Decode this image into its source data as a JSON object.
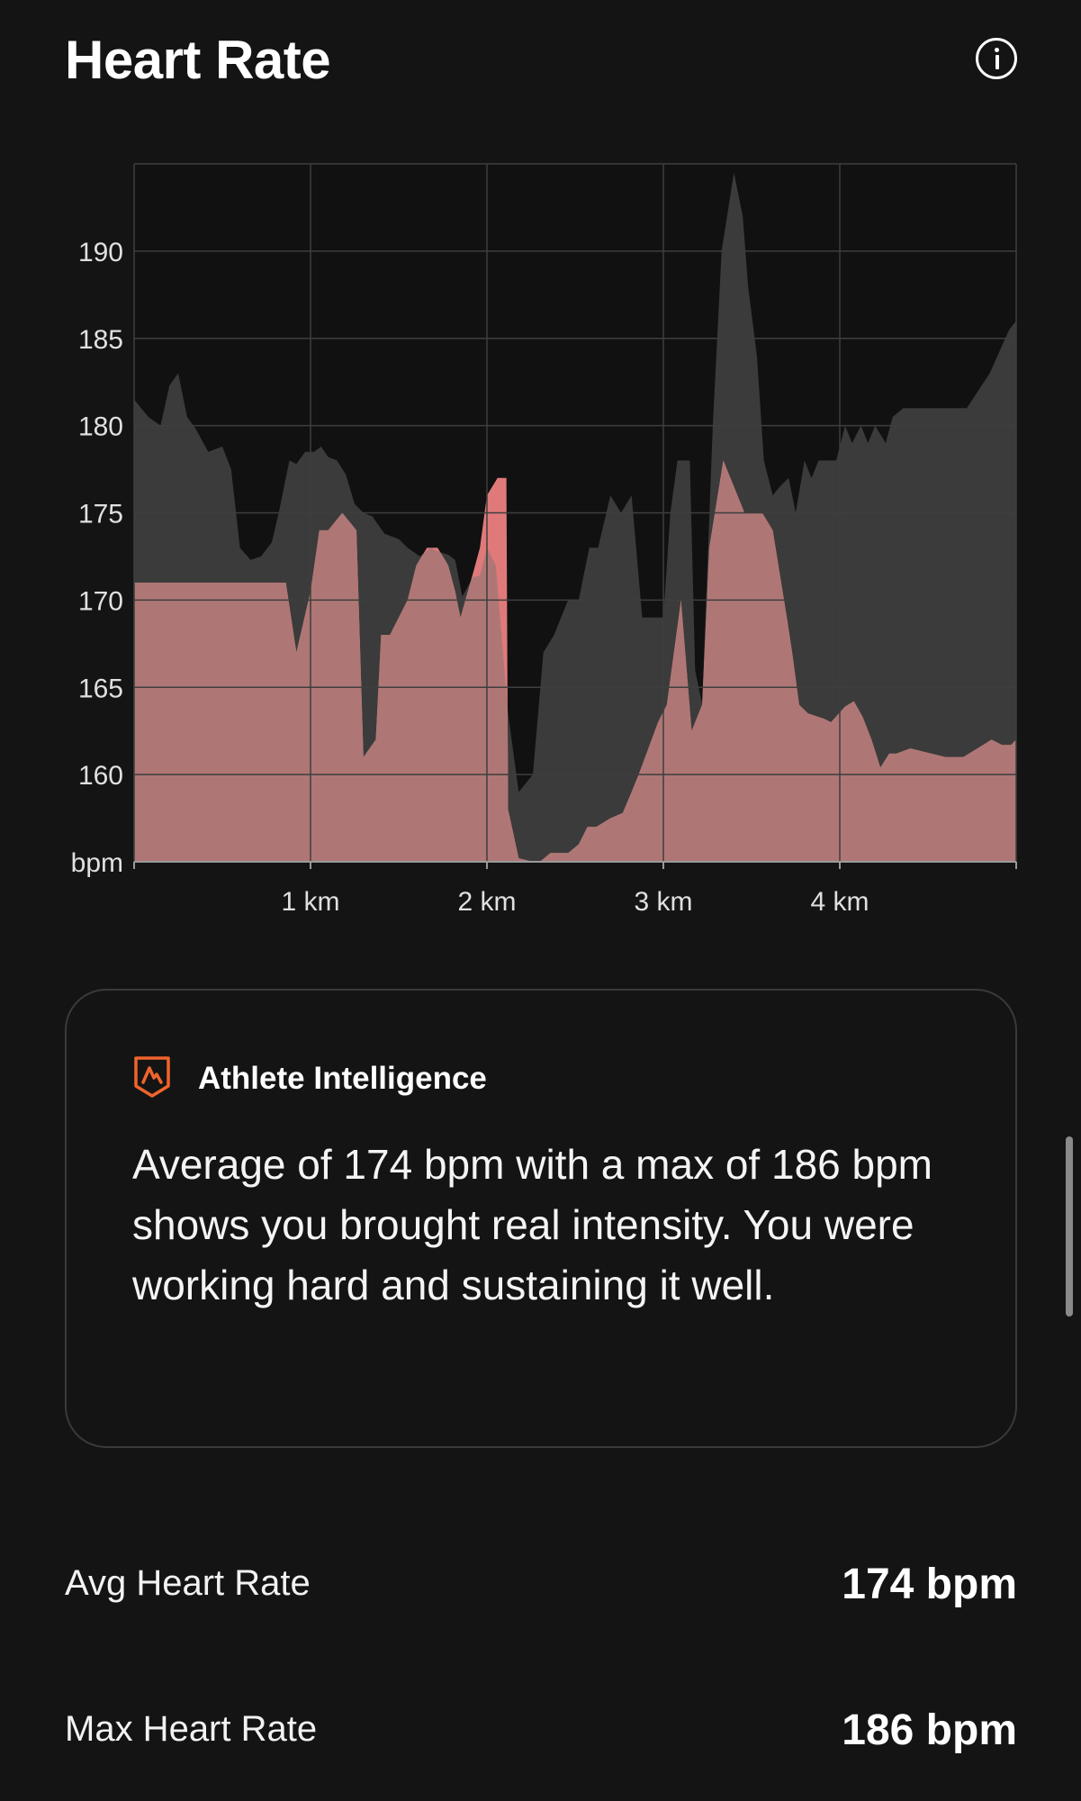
{
  "header": {
    "title": "Heart Rate",
    "info_icon": "info-icon"
  },
  "colors": {
    "background": "#141414",
    "heart_rate": "#e07a7a",
    "comparison": "#3b3b3b",
    "overlap": "#ae7775"
  },
  "chart_data": {
    "type": "area",
    "xlabel": "",
    "ylabel": "bpm",
    "x_ticks": [
      "1 km",
      "2 km",
      "3 km",
      "4 km"
    ],
    "x_tick_values": [
      1,
      2,
      3,
      4
    ],
    "y_ticks": [
      "bpm",
      "160",
      "165",
      "170",
      "175",
      "180",
      "185",
      "190"
    ],
    "y_tick_values": [
      155,
      160,
      165,
      170,
      175,
      180,
      185,
      190
    ],
    "xlim": [
      0,
      5
    ],
    "ylim": [
      155,
      195
    ],
    "grid": true,
    "series": [
      {
        "role": "heart rate (current run, pink)",
        "x": [
          0,
          0.86,
          0.92,
          1.0,
          1.05,
          1.1,
          1.18,
          1.26,
          1.3,
          1.37,
          1.4,
          1.45,
          1.55,
          1.6,
          1.66,
          1.72,
          1.78,
          1.82,
          1.85,
          1.92,
          1.96,
          2.0,
          2.06,
          2.11,
          2.12,
          2.18,
          2.26,
          2.3,
          2.36,
          2.46,
          2.52,
          2.57,
          2.62,
          2.7,
          2.77,
          2.82,
          2.86,
          2.97,
          3.02,
          3.1,
          3.16,
          3.22,
          3.26,
          3.34,
          3.46,
          3.52,
          3.56,
          3.62,
          3.7,
          3.73,
          3.77,
          3.82,
          3.85,
          3.91,
          3.95,
          4.03,
          4.08,
          4.13,
          4.18,
          4.23,
          4.28,
          4.32,
          4.4,
          4.6,
          4.7,
          4.78,
          4.86,
          4.92,
          4.97,
          5.0
        ],
        "y": [
          171,
          171,
          167,
          170.5,
          174,
          174,
          175,
          174,
          161,
          162,
          168,
          168,
          170,
          172,
          173,
          173,
          172,
          170.5,
          169,
          171.5,
          173,
          176,
          177,
          177,
          158,
          155.2,
          155,
          155,
          155.5,
          155.5,
          156,
          157,
          157,
          157.5,
          157.8,
          159,
          160,
          163,
          164,
          170,
          162.5,
          164,
          173,
          178,
          175,
          175,
          175,
          174,
          169,
          167,
          164,
          163.5,
          163.4,
          163.2,
          163,
          163.9,
          164.2,
          163.3,
          162,
          160.4,
          161.2,
          161.2,
          161.5,
          161,
          161,
          161.5,
          162,
          161.7,
          161.7,
          162
        ]
      },
      {
        "role": "comparison (gray)",
        "x": [
          0,
          0.08,
          0.15,
          0.2,
          0.25,
          0.3,
          0.35,
          0.42,
          0.5,
          0.55,
          0.6,
          0.66,
          0.72,
          0.78,
          0.82,
          0.88,
          0.92,
          0.97,
          1.02,
          1.06,
          1.1,
          1.15,
          1.2,
          1.25,
          1.3,
          1.35,
          1.42,
          1.5,
          1.55,
          1.62,
          1.68,
          1.72,
          1.78,
          1.82,
          1.86,
          1.92,
          1.96,
          2.0,
          2.05,
          2.12,
          2.18,
          2.26,
          2.32,
          2.38,
          2.46,
          2.52,
          2.58,
          2.63,
          2.7,
          2.76,
          2.82,
          2.88,
          2.94,
          3.0,
          3.04,
          3.08,
          3.15,
          3.18,
          3.22,
          3.28,
          3.33,
          3.4,
          3.45,
          3.48,
          3.53,
          3.57,
          3.62,
          3.66,
          3.71,
          3.75,
          3.8,
          3.84,
          3.88,
          3.94,
          3.98,
          4.03,
          4.07,
          4.12,
          4.16,
          4.2,
          4.26,
          4.3,
          4.36,
          4.4,
          4.5,
          4.6,
          4.72,
          4.85,
          4.96,
          5.0
        ],
        "y": [
          181.5,
          180.5,
          180,
          182.3,
          183,
          180.5,
          179.8,
          178.5,
          178.8,
          177.5,
          173,
          172.3,
          172.5,
          173.3,
          175,
          178,
          177.8,
          178.5,
          178.5,
          178.8,
          178.2,
          178,
          177.2,
          175.5,
          175,
          174.8,
          173.8,
          173.5,
          173,
          172.5,
          173,
          172.8,
          172.6,
          172.3,
          170.2,
          171.3,
          171.4,
          173,
          172,
          163.5,
          159,
          160,
          167,
          168,
          170,
          170,
          173,
          173,
          176,
          175,
          176,
          169,
          169,
          169,
          175,
          178,
          178,
          166,
          164,
          180,
          190,
          194.5,
          192,
          188,
          184,
          178,
          176,
          176.5,
          177,
          175,
          178,
          177,
          178,
          178,
          178,
          180,
          179,
          180,
          179,
          180,
          179,
          180.5,
          181,
          181,
          181,
          181,
          181,
          183,
          185.5,
          186
        ]
      }
    ]
  },
  "athlete_intelligence": {
    "icon": "athlete-intelligence-icon",
    "title": "Athlete Intelligence",
    "text": "Average of 174 bpm with a max of 186 bpm shows you brought real intensity. You were working hard and sustaining it well."
  },
  "stats": [
    {
      "label": "Avg Heart Rate",
      "value": "174 bpm"
    },
    {
      "label": "Max Heart Rate",
      "value": "186 bpm"
    }
  ]
}
